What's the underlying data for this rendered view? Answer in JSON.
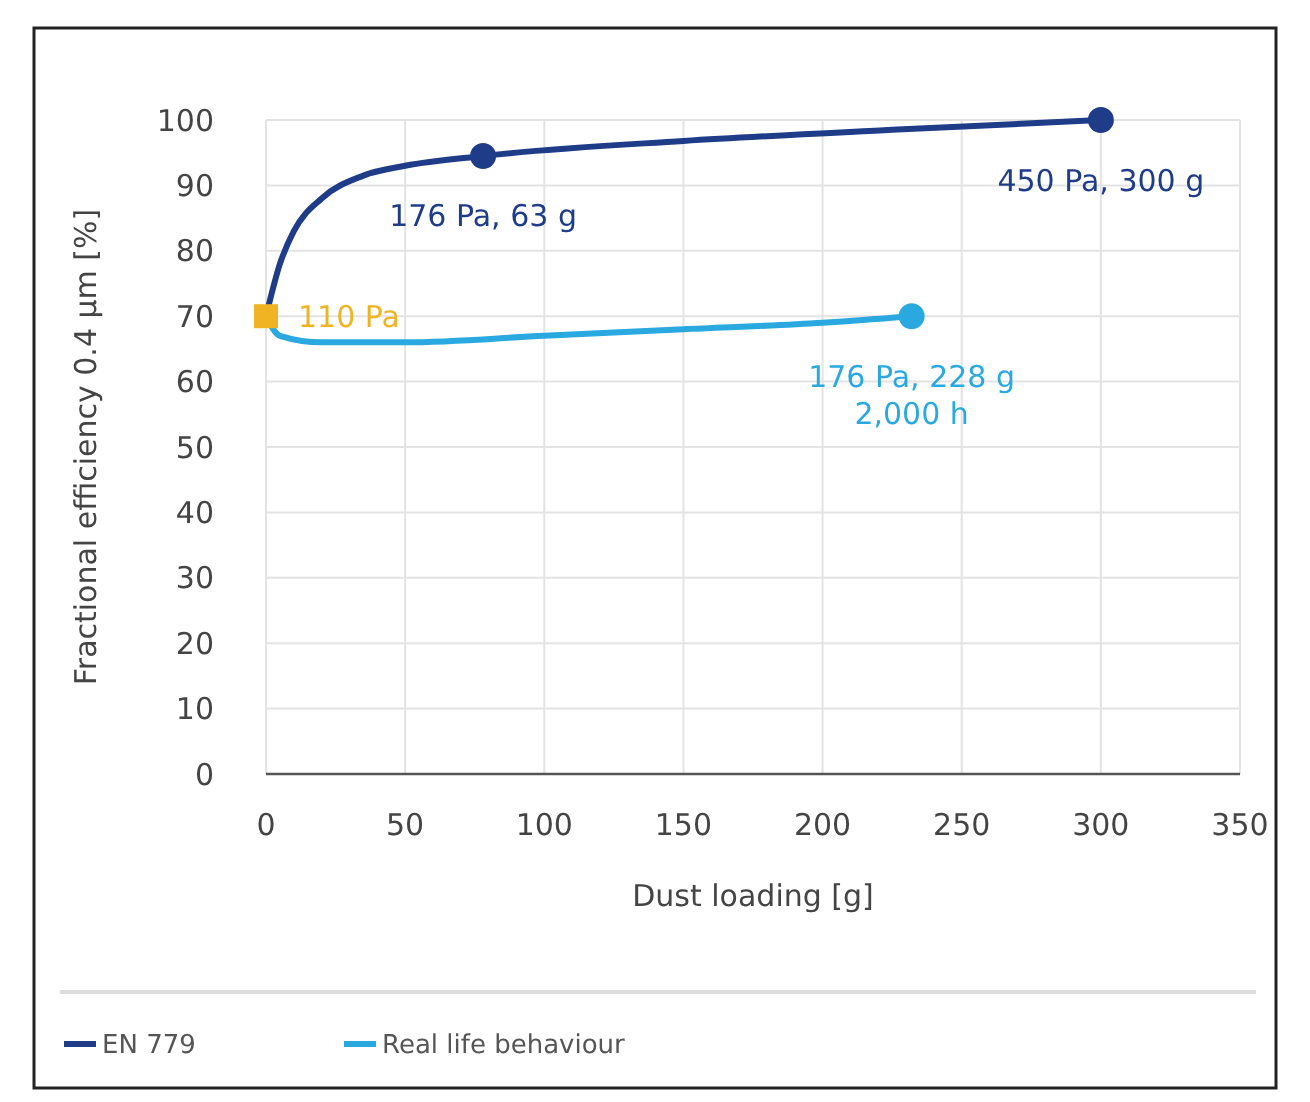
{
  "chart_data": {
    "type": "line",
    "xlabel": "Dust loading [g]",
    "ylabel": "Fractional efficiency 0.4 µm [%]",
    "xlim": [
      0,
      350
    ],
    "xticks": [
      0,
      50,
      100,
      150,
      200,
      250,
      300,
      350
    ],
    "ylim": [
      0,
      100
    ],
    "yticks": [
      0,
      10,
      20,
      30,
      40,
      50,
      60,
      70,
      80,
      90,
      100
    ],
    "grid": true,
    "legend": "bottom",
    "line_style": "solid",
    "series": [
      {
        "name": "EN 779",
        "color": "#1f3c88",
        "x": [
          0,
          5,
          10,
          20,
          35,
          50,
          78,
          150,
          225,
          300
        ],
        "values": [
          70,
          78,
          83,
          88,
          91.5,
          93,
          94.5,
          96.8,
          98.5,
          100
        ]
      },
      {
        "name": "Real life behaviour",
        "color": "#29a9e0",
        "x": [
          0,
          5,
          20,
          50,
          100,
          150,
          200,
          232
        ],
        "values": [
          70,
          67,
          66,
          66,
          67,
          68,
          69,
          70
        ]
      },
      {
        "type": "scatter",
        "marker": "circle",
        "color": "#1f3c88",
        "x": [
          78,
          300
        ],
        "values": [
          94.5,
          100
        ]
      },
      {
        "type": "scatter",
        "marker": "circle",
        "color": "#29a9e0",
        "x": [
          232
        ],
        "values": [
          70
        ]
      },
      {
        "type": "scatter",
        "marker": "square",
        "color": "#f0b323",
        "x": [
          0
        ],
        "values": [
          70
        ]
      }
    ],
    "annotations": [
      {
        "text": "176 Pa, 63 g",
        "x": 78,
        "y": 94.5
      },
      {
        "text": "450 Pa, 300 g",
        "x": 300,
        "y": 100
      },
      {
        "text": "176 Pa, 228 g\n2,000 h",
        "x": 232,
        "y": 70
      },
      {
        "text": "110 Pa",
        "x": 0,
        "y": 70
      }
    ]
  }
}
